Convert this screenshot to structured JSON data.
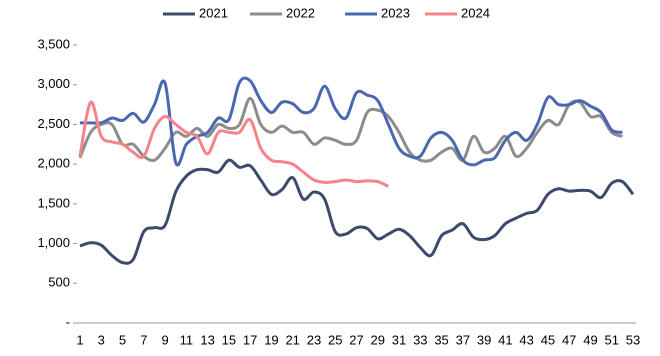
{
  "chart_data": {
    "type": "line",
    "categories": [
      1,
      null,
      3,
      null,
      5,
      null,
      7,
      null,
      9,
      null,
      11,
      null,
      13,
      null,
      15,
      null,
      17,
      null,
      19,
      null,
      21,
      null,
      23,
      null,
      25,
      null,
      27,
      null,
      29,
      null,
      31,
      null,
      33,
      null,
      35,
      null,
      37,
      null,
      39,
      null,
      41,
      null,
      43,
      null,
      45,
      null,
      47,
      null,
      49,
      null,
      51,
      null,
      53
    ],
    "series": [
      {
        "name": "2021",
        "color": "#3d4a6e",
        "values": [
          970,
          1010,
          980,
          850,
          760,
          800,
          1150,
          1200,
          1230,
          1650,
          1850,
          1930,
          1930,
          1900,
          2050,
          1960,
          1980,
          1800,
          1620,
          1680,
          1830,
          1560,
          1650,
          1560,
          1150,
          1120,
          1200,
          1190,
          1060,
          1120,
          1180,
          1100,
          950,
          850,
          1100,
          1170,
          1250,
          1080,
          1050,
          1100,
          1250,
          1320,
          1380,
          1420,
          1620,
          1690,
          1660,
          1670,
          1660,
          1580,
          1760,
          1780,
          1620
        ]
      },
      {
        "name": "2022",
        "color": "#8c8c8c",
        "values": [
          2080,
          2400,
          2500,
          2500,
          2250,
          2250,
          2100,
          2050,
          2200,
          2400,
          2350,
          2450,
          2350,
          2500,
          2450,
          2500,
          2830,
          2500,
          2400,
          2480,
          2400,
          2400,
          2250,
          2330,
          2300,
          2250,
          2300,
          2650,
          2680,
          2600,
          2400,
          2150,
          2050,
          2050,
          2150,
          2200,
          2050,
          2350,
          2150,
          2200,
          2350,
          2100,
          2200,
          2400,
          2550,
          2500,
          2750,
          2780,
          2600,
          2600,
          2400,
          2350,
          null
        ]
      },
      {
        "name": "2023",
        "color": "#4a67b0",
        "values": [
          2520,
          2520,
          2520,
          2580,
          2550,
          2640,
          2530,
          2750,
          3020,
          2020,
          2250,
          2350,
          2400,
          2580,
          2560,
          3030,
          3050,
          2800,
          2650,
          2780,
          2760,
          2650,
          2700,
          2980,
          2700,
          2580,
          2900,
          2870,
          2800,
          2500,
          2200,
          2100,
          2100,
          2330,
          2400,
          2300,
          2050,
          1990,
          2050,
          2080,
          2300,
          2400,
          2300,
          2500,
          2840,
          2750,
          2750,
          2800,
          2730,
          2650,
          2430,
          2400,
          null
        ]
      },
      {
        "name": "2024",
        "color": "#f4838a",
        "values": [
          2100,
          2780,
          2350,
          2280,
          2250,
          2150,
          2100,
          2450,
          2600,
          2500,
          2400,
          2350,
          2130,
          2400,
          2400,
          2400,
          2560,
          2200,
          2050,
          2030,
          2000,
          1900,
          1800,
          1770,
          1780,
          1800,
          1780,
          1790,
          1780,
          1720,
          null,
          null,
          null,
          null,
          null,
          null,
          null,
          null,
          null,
          null,
          null,
          null,
          null,
          null,
          null,
          null,
          null,
          null,
          null,
          null,
          null,
          null,
          null
        ]
      }
    ],
    "ylim": [
      0,
      3500
    ],
    "yticks": [
      {
        "value": 0,
        "label": "-"
      },
      500,
      {
        "value": 1000,
        "label": "1,000"
      },
      {
        "value": 1500,
        "label": "1,500"
      },
      {
        "value": 2000,
        "label": "2,000"
      },
      {
        "value": 2500,
        "label": "2,500"
      },
      {
        "value": 3000,
        "label": "3,000"
      },
      {
        "value": 3500,
        "label": "3,500"
      }
    ],
    "legend": "top"
  }
}
